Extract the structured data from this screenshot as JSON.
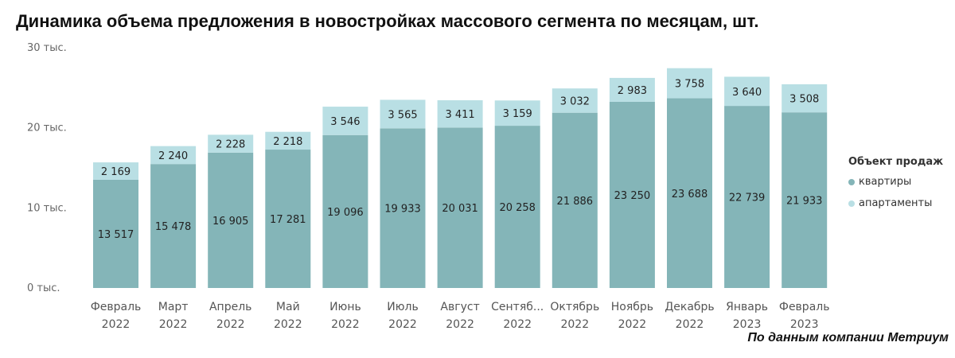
{
  "title": "Динамика объема предложения в новостройках массового сегмента по месяцам, шт.",
  "source": "По данным компании Метриум",
  "legend": {
    "title": "Объект продаж",
    "items": [
      {
        "label": "квартиры",
        "color": "#84b5b8"
      },
      {
        "label": "апартаменты",
        "color": "#b9dfe4"
      }
    ]
  },
  "chart_data": {
    "type": "bar",
    "stacked": true,
    "categories": [
      [
        "Февраль",
        "2022"
      ],
      [
        "Март",
        "2022"
      ],
      [
        "Апрель",
        "2022"
      ],
      [
        "Май",
        "2022"
      ],
      [
        "Июнь",
        "2022"
      ],
      [
        "Июль",
        "2022"
      ],
      [
        "Август",
        "2022"
      ],
      [
        "Сентяб...",
        "2022"
      ],
      [
        "Октябрь",
        "2022"
      ],
      [
        "Ноябрь",
        "2022"
      ],
      [
        "Декабрь",
        "2022"
      ],
      [
        "Январь",
        "2023"
      ],
      [
        "Февраль",
        "2023"
      ]
    ],
    "series": [
      {
        "name": "квартиры",
        "color": "#84b5b8",
        "values": [
          13517,
          15478,
          16905,
          17281,
          19096,
          19933,
          20031,
          20258,
          21886,
          23250,
          23688,
          22739,
          21933
        ],
        "labels": [
          "13 517",
          "15 478",
          "16 905",
          "17 281",
          "19 096",
          "19 933",
          "20 031",
          "20 258",
          "21 886",
          "23 250",
          "23 688",
          "22 739",
          "21 933"
        ]
      },
      {
        "name": "апартаменты",
        "color": "#b9dfe4",
        "values": [
          2169,
          2240,
          2228,
          2218,
          3546,
          3565,
          3411,
          3159,
          3032,
          2983,
          3758,
          3640,
          3508
        ],
        "labels": [
          "2 169",
          "2 240",
          "2 228",
          "2 218",
          "3 546",
          "3 565",
          "3 411",
          "3 159",
          "3 032",
          "2 983",
          "3 758",
          "3 640",
          "3 508"
        ]
      }
    ],
    "ylim": [
      0,
      30000
    ],
    "yticks": [
      {
        "value": 0,
        "label": "0 тыс."
      },
      {
        "value": 10000,
        "label": "10 тыс."
      },
      {
        "value": 20000,
        "label": "20 тыс."
      },
      {
        "value": 30000,
        "label": "30 тыс."
      }
    ],
    "grid": false,
    "legend_position": "right"
  }
}
